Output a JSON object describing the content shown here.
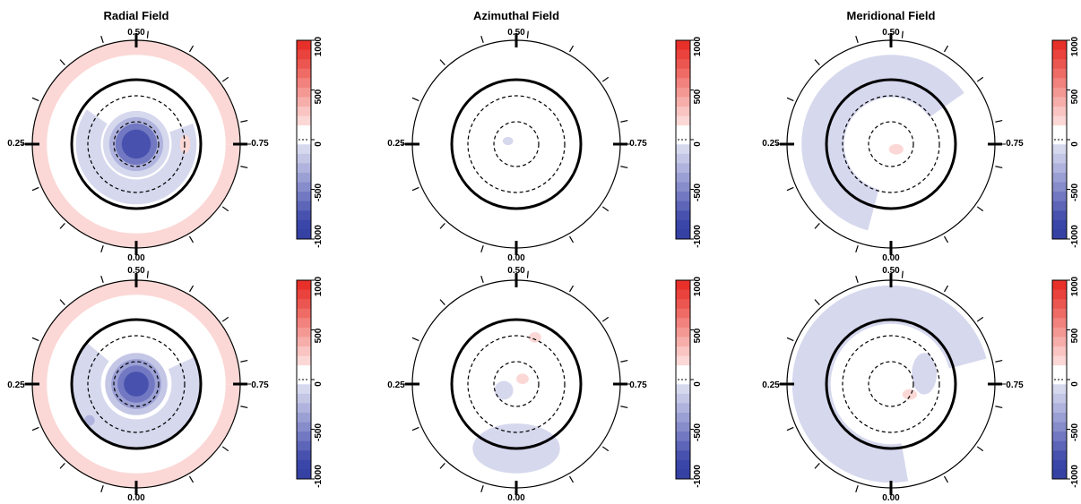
{
  "chart_data": {
    "type": "heatmap",
    "projection": "polar",
    "panel_titles": [
      "Radial Field",
      "Azimuthal Field",
      "Meridional Field"
    ],
    "phase_labels": {
      "top": "0.50",
      "left": "0.25",
      "right": "0.75",
      "bottom": "0.00"
    },
    "colorbar": {
      "range": [
        -1000,
        1000
      ],
      "tick_labels": [
        "1000",
        "500",
        "0",
        "-500",
        "-1000"
      ],
      "levels": [
        1000,
        900,
        800,
        700,
        600,
        500,
        400,
        300,
        200,
        100,
        0,
        -100,
        -200,
        -300,
        -400,
        -500,
        -600,
        -700,
        -800,
        -900,
        -1000
      ],
      "colors": [
        "#e8302a",
        "#ea423c",
        "#ec5650",
        "#ef6c66",
        "#f2827d",
        "#f49894",
        "#f6aeaa",
        "#f9c4c1",
        "#fbd8d6",
        "#ffffff",
        "#ffffff",
        "#d6d8ee",
        "#c4c6e6",
        "#b0b3dd",
        "#9ba0d4",
        "#878ccb",
        "#7279c2",
        "#5d65b8",
        "#4852ae",
        "#3a46a8",
        "#3541a3"
      ]
    },
    "maps": [
      {
        "row": 0,
        "field": "Radial Field",
        "features": [
          {
            "shape": "ring",
            "r0": 0.86,
            "r1": 1.0,
            "value": 150
          },
          {
            "shape": "ring",
            "r0": 0.34,
            "r1": 0.58,
            "value": -150,
            "gap_start": 20,
            "gap_end": 145
          },
          {
            "shape": "disk",
            "r": 0.32,
            "value": -150
          },
          {
            "shape": "disk",
            "r": 0.26,
            "value": -350
          },
          {
            "shape": "disk",
            "r": 0.2,
            "value": -600
          },
          {
            "shape": "disk",
            "r": 0.14,
            "value": -850
          },
          {
            "shape": "blob",
            "cx": 0.47,
            "cy": 0.0,
            "rx": 0.05,
            "ry": 0.09,
            "value": 150
          }
        ]
      },
      {
        "row": 0,
        "field": "Azimuthal Field",
        "features": [
          {
            "shape": "blob",
            "cx": -0.08,
            "cy": 0.03,
            "rx": 0.05,
            "ry": 0.04,
            "value": -150
          }
        ]
      },
      {
        "row": 0,
        "field": "Meridional Field",
        "features": [
          {
            "shape": "crescent",
            "r0": 0.45,
            "r1": 0.86,
            "a0": 35,
            "a1": 255,
            "value": -150
          },
          {
            "shape": "blob",
            "cx": 0.05,
            "cy": -0.05,
            "rx": 0.07,
            "ry": 0.05,
            "value": 150
          }
        ]
      },
      {
        "row": 1,
        "field": "Radial Field",
        "features": [
          {
            "shape": "ring",
            "r0": 0.86,
            "r1": 1.0,
            "value": 150
          },
          {
            "shape": "ring",
            "r0": 0.34,
            "r1": 0.62,
            "value": -150,
            "gap_start": 25,
            "gap_end": 140
          },
          {
            "shape": "disk",
            "r": 0.3,
            "value": -200
          },
          {
            "shape": "disk",
            "r": 0.24,
            "value": -400
          },
          {
            "shape": "disk",
            "r": 0.18,
            "value": -650
          },
          {
            "shape": "disk",
            "r": 0.12,
            "value": -850
          },
          {
            "shape": "blob",
            "cx": -0.45,
            "cy": -0.35,
            "rx": 0.05,
            "ry": 0.05,
            "value": -300
          }
        ]
      },
      {
        "row": 1,
        "field": "Azimuthal Field",
        "features": [
          {
            "shape": "blob",
            "cx": 0.0,
            "cy": -0.62,
            "rx": 0.42,
            "ry": 0.24,
            "value": -150
          },
          {
            "shape": "blob",
            "cx": -0.12,
            "cy": -0.06,
            "rx": 0.09,
            "ry": 0.09,
            "value": -150
          },
          {
            "shape": "blob",
            "cx": 0.06,
            "cy": 0.05,
            "rx": 0.06,
            "ry": 0.05,
            "value": 150
          },
          {
            "shape": "blob",
            "cx": 0.18,
            "cy": 0.45,
            "rx": 0.06,
            "ry": 0.05,
            "value": 150
          }
        ]
      },
      {
        "row": 1,
        "field": "Meridional Field",
        "features": [
          {
            "shape": "crescent",
            "r0": 0.58,
            "r1": 0.95,
            "a0": 15,
            "a1": 280,
            "value": -150
          },
          {
            "shape": "blob",
            "cx": 0.32,
            "cy": 0.1,
            "rx": 0.12,
            "ry": 0.2,
            "value": -150
          },
          {
            "shape": "blob",
            "cx": 0.18,
            "cy": -0.1,
            "rx": 0.07,
            "ry": 0.05,
            "value": 150
          }
        ]
      }
    ]
  }
}
